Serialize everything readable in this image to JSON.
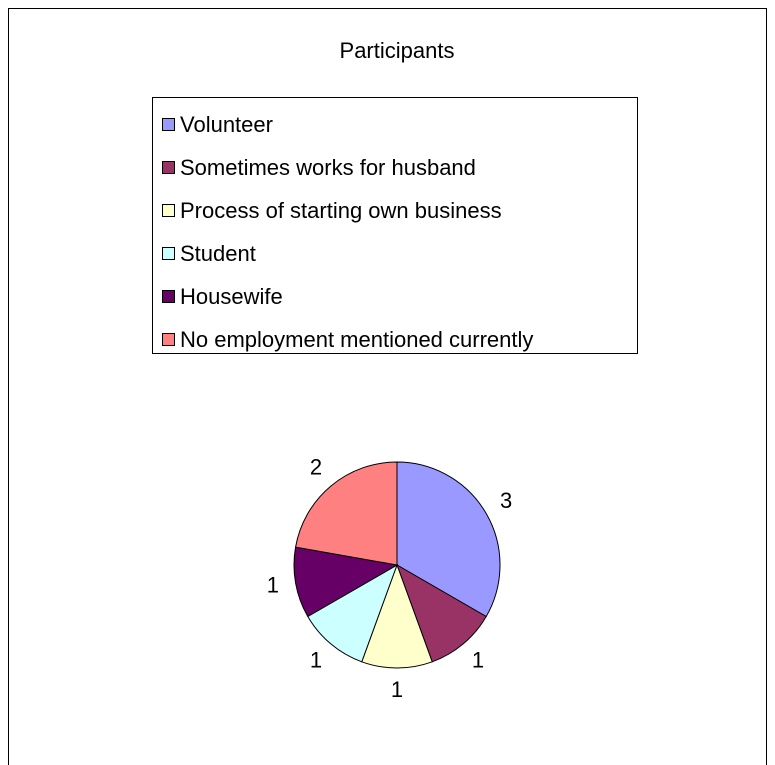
{
  "chart_data": {
    "type": "pie",
    "title": "Participants",
    "categories": [
      "Volunteer",
      "Sometimes works for husband",
      "Process of starting own business",
      "Student",
      "Housewife",
      "No employment mentioned currently"
    ],
    "values": [
      3,
      1,
      1,
      1,
      1,
      2
    ],
    "colors": [
      "#9999ff",
      "#993366",
      "#ffffcc",
      "#ccffff",
      "#660066",
      "#ff8080"
    ],
    "legend": "top"
  }
}
